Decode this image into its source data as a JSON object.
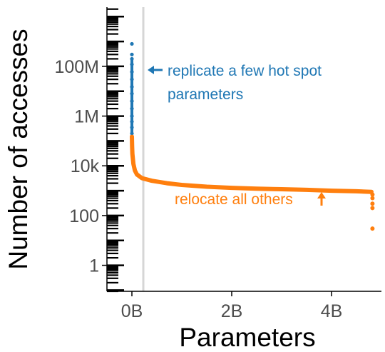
{
  "chart_data": {
    "type": "scatter",
    "title": "",
    "xlabel": "Parameters",
    "ylabel": "Number of accesses",
    "x_scale": "linear",
    "y_scale": "log10",
    "xlim": [
      -0.5,
      5.0
    ],
    "ylim": [
      0.09,
      24000000000
    ],
    "x_ticks": [
      {
        "value": 0,
        "label": "0B"
      },
      {
        "value": 2,
        "label": "2B"
      },
      {
        "value": 4,
        "label": "4B"
      }
    ],
    "y_ticks": [
      {
        "value": 1,
        "label": "1"
      },
      {
        "value": 100,
        "label": "100"
      },
      {
        "value": 10000,
        "label": "10k"
      },
      {
        "value": 1000000,
        "label": "1M"
      },
      {
        "value": 100000000,
        "label": "100M"
      }
    ],
    "grid": false,
    "rug_on_y_axis": true,
    "reference_line_x": 0,
    "series": [
      {
        "key": "hot",
        "color": "#1f77b4",
        "points": [
          {
            "x": 0.0,
            "y": 800000000
          },
          {
            "x": 0.0,
            "y": 300000000
          },
          {
            "x": 0.0,
            "y": 200000000
          },
          {
            "x": 0.0,
            "y": 120000000
          },
          {
            "x": 0.0,
            "y": 60000000
          },
          {
            "x": 0.0,
            "y": 30000000
          },
          {
            "x": 0.0,
            "y": 15000000
          },
          {
            "x": 0.0,
            "y": 8000000
          },
          {
            "x": 0.0,
            "y": 4000000
          },
          {
            "x": 0.0,
            "y": 2000000
          },
          {
            "x": 0.0,
            "y": 1000000
          },
          {
            "x": 0.0,
            "y": 600000
          },
          {
            "x": 0.0,
            "y": 350000
          },
          {
            "x": 0.0,
            "y": 200000
          }
        ]
      },
      {
        "key": "others",
        "color": "#ff7f0e",
        "points": [
          {
            "x": 0.0,
            "y": 150000
          },
          {
            "x": 0.005,
            "y": 60000
          },
          {
            "x": 0.01,
            "y": 30000
          },
          {
            "x": 0.03,
            "y": 12000
          },
          {
            "x": 0.06,
            "y": 6500
          },
          {
            "x": 0.1,
            "y": 4500
          },
          {
            "x": 0.2,
            "y": 3200
          },
          {
            "x": 0.4,
            "y": 2500
          },
          {
            "x": 0.7,
            "y": 2000
          },
          {
            "x": 1.0,
            "y": 1700
          },
          {
            "x": 1.5,
            "y": 1450
          },
          {
            "x": 2.0,
            "y": 1300
          },
          {
            "x": 2.5,
            "y": 1200
          },
          {
            "x": 3.0,
            "y": 1150
          },
          {
            "x": 3.5,
            "y": 1080
          },
          {
            "x": 4.0,
            "y": 1000
          },
          {
            "x": 4.5,
            "y": 950
          },
          {
            "x": 4.8,
            "y": 900
          },
          {
            "x": 4.82,
            "y": 700
          },
          {
            "x": 4.82,
            "y": 500
          },
          {
            "x": 4.82,
            "y": 300
          },
          {
            "x": 4.82,
            "y": 200
          },
          {
            "x": 4.82,
            "y": 30
          }
        ]
      }
    ],
    "annotations": [
      {
        "key": "hot_label",
        "lines": [
          "replicate a few hot spot",
          "parameters"
        ],
        "color": "#1f77b4",
        "arrow": "left"
      },
      {
        "key": "others_label",
        "lines": [
          "relocate all others"
        ],
        "color": "#ff7f0e",
        "arrow": "up"
      }
    ]
  }
}
